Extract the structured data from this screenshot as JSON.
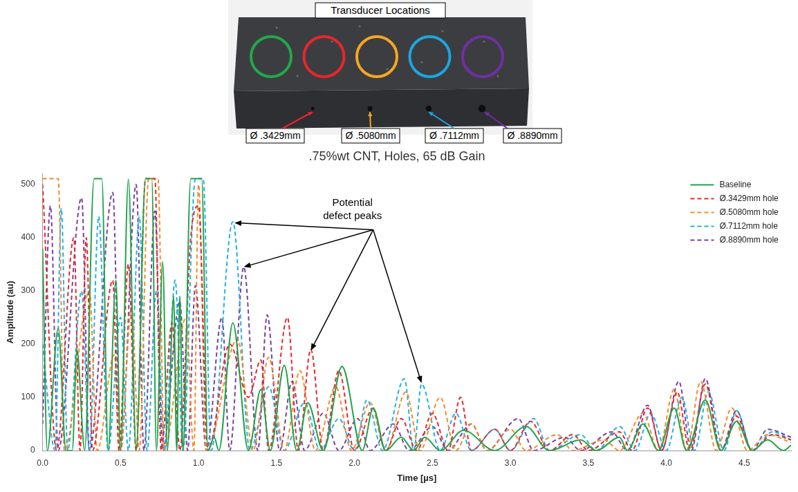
{
  "figure": {
    "title": "Transducer Locations",
    "transducers": [
      "#22a84a",
      "#e8262b",
      "#f5a623",
      "#1ea5e0",
      "#7030a0"
    ],
    "holes": [
      {
        "label": "Ø .3429mm",
        "color": "#e8262b"
      },
      {
        "label": "Ø .5080mm",
        "color": "#f5a623"
      },
      {
        "label": "Ø .7112mm",
        "color": "#1ea5e0"
      },
      {
        "label": "Ø .8890mm",
        "color": "#7030a0"
      }
    ]
  },
  "chart_data": {
    "type": "line",
    "title": ".75%wt CNT, Holes, 65 dB Gain",
    "x_label": "Time [µs]",
    "y_label": "Amplitude (au)",
    "xlim": [
      0,
      4.8
    ],
    "xticks": [
      {
        "value": 0,
        "label": "0.0"
      },
      0.5,
      {
        "value": 1,
        "label": "1.0"
      },
      1.5,
      {
        "value": 2,
        "label": "2.0"
      },
      2.5,
      {
        "value": 3,
        "label": "3.0"
      },
      3.5,
      {
        "value": 4,
        "label": "4.0"
      },
      4.5
    ],
    "ylim": [
      0,
      520
    ],
    "yticks": [
      0,
      100,
      200,
      300,
      400,
      500
    ],
    "grid": false,
    "legend": "top-right",
    "annotations": [
      {
        "text": "Potential defect peaks",
        "x": 2.12,
        "y": 415,
        "targets": [
          [
            1.23,
            428
          ],
          [
            1.29,
            345
          ],
          [
            1.72,
            188
          ],
          [
            2.43,
            127
          ]
        ]
      }
    ],
    "series": [
      {
        "name": "Baseline",
        "color": "#1fa34a",
        "line_style": "solid",
        "x": [
          0,
          0.03,
          0.1,
          0.15,
          0.19,
          0.22,
          0.27,
          0.33,
          0.38,
          0.42,
          0.47,
          0.5,
          0.55,
          0.6,
          0.66,
          0.7,
          0.73,
          0.77,
          0.8,
          0.84,
          0.86,
          0.88,
          0.9,
          0.95,
          1.02,
          1.06,
          1.1,
          1.13,
          1.22,
          1.32,
          1.4,
          1.46,
          1.55,
          1.63,
          1.7,
          1.8,
          1.92,
          2.05,
          2.12,
          2.2,
          2.3,
          2.38,
          2.45,
          2.55,
          2.7,
          2.9,
          3.1,
          3.25,
          3.45,
          3.55,
          3.7,
          3.75,
          3.85,
          3.95,
          4.05,
          4.13,
          4.25,
          4.35,
          4.45,
          4.55,
          4.65,
          4.75,
          4.8
        ],
        "values": [
          380,
          0,
          230,
          0,
          0,
          190,
          0,
          511,
          511,
          0,
          320,
          0,
          510,
          0,
          511,
          511,
          0,
          355,
          0,
          290,
          0,
          290,
          0,
          511,
          511,
          0,
          25,
          0,
          240,
          0,
          115,
          0,
          160,
          0,
          90,
          0,
          158,
          0,
          80,
          0,
          25,
          0,
          25,
          0,
          38,
          0,
          45,
          0,
          20,
          0,
          25,
          0,
          50,
          0,
          80,
          0,
          95,
          0,
          55,
          0,
          20,
          0,
          10
        ]
      },
      {
        "name": "Ø.3429mm hole",
        "color": "#e8262b",
        "line_style": "dashed",
        "x": [
          0,
          0.09,
          0.2,
          0.24,
          0.28,
          0.32,
          0.45,
          0.49,
          0.55,
          0.6,
          0.66,
          0.72,
          0.76,
          0.83,
          0.88,
          0.95,
          1.0,
          1.06,
          1.2,
          1.32,
          1.4,
          1.45,
          1.57,
          1.64,
          1.72,
          1.8,
          1.9,
          2.0,
          2.12,
          2.2,
          2.3,
          2.4,
          2.5,
          2.6,
          2.68,
          2.75,
          2.9,
          3.0,
          3.13,
          3.25,
          3.4,
          3.5,
          3.7,
          3.78,
          3.88,
          3.97,
          4.07,
          4.15,
          4.25,
          4.35,
          4.45,
          4.55,
          4.68,
          4.8
        ],
        "values": [
          500,
          0,
          400,
          0,
          400,
          0,
          320,
          0,
          350,
          0,
          511,
          511,
          0,
          240,
          0,
          400,
          460,
          0,
          200,
          100,
          170,
          0,
          250,
          0,
          190,
          0,
          150,
          0,
          80,
          0,
          60,
          0,
          70,
          0,
          100,
          0,
          40,
          0,
          55,
          0,
          30,
          0,
          35,
          0,
          80,
          0,
          110,
          0,
          125,
          0,
          65,
          0,
          30,
          20
        ]
      },
      {
        "name": "Ø.5080mm hole",
        "color": "#f58a2a",
        "line_style": "dashed",
        "x": [
          0,
          0.1,
          0.14,
          0.3,
          0.35,
          0.46,
          0.5,
          0.57,
          0.62,
          0.68,
          0.74,
          0.78,
          0.92,
          0.97,
          1.0,
          1.05,
          1.25,
          1.35,
          1.45,
          1.55,
          1.65,
          1.75,
          1.88,
          1.98,
          2.1,
          2.2,
          2.33,
          2.42,
          2.55,
          2.65,
          2.75,
          2.85,
          3.0,
          3.1,
          3.3,
          3.4,
          3.6,
          3.7,
          3.85,
          3.95,
          4.05,
          4.13,
          4.22,
          4.32,
          4.42,
          4.52,
          4.65,
          4.8
        ],
        "values": [
          511,
          511,
          0,
          300,
          0,
          180,
          0,
          270,
          0,
          511,
          511,
          0,
          250,
          0,
          500,
          0,
          210,
          0,
          175,
          0,
          150,
          0,
          120,
          0,
          90,
          0,
          110,
          0,
          100,
          0,
          50,
          0,
          40,
          0,
          30,
          0,
          20,
          0,
          70,
          0,
          115,
          0,
          130,
          0,
          80,
          0,
          30,
          15
        ]
      },
      {
        "name": "Ø.7112mm hole",
        "color": "#21b0e8",
        "line_style": "dashed",
        "x": [
          0,
          0.08,
          0.12,
          0.16,
          0.25,
          0.3,
          0.36,
          0.42,
          0.5,
          0.55,
          0.62,
          0.67,
          0.73,
          0.78,
          0.85,
          0.9,
          0.98,
          1.03,
          1.08,
          1.22,
          1.33,
          1.45,
          1.55,
          1.68,
          1.78,
          1.9,
          2.0,
          2.08,
          2.18,
          2.32,
          2.38,
          2.43,
          2.55,
          2.65,
          2.75,
          2.9,
          3.0,
          3.15,
          3.25,
          3.45,
          3.55,
          3.7,
          3.8,
          3.9,
          4.0,
          4.1,
          4.18,
          4.27,
          4.37,
          4.45,
          4.55,
          4.68,
          4.8
        ],
        "values": [
          200,
          0,
          455,
          0,
          300,
          0,
          440,
          0,
          250,
          0,
          440,
          0,
          300,
          0,
          320,
          0,
          511,
          511,
          0,
          430,
          0,
          120,
          0,
          90,
          0,
          60,
          0,
          95,
          0,
          135,
          0,
          125,
          0,
          70,
          0,
          40,
          0,
          60,
          0,
          30,
          0,
          45,
          0,
          70,
          0,
          100,
          0,
          110,
          0,
          75,
          0,
          35,
          20
        ]
      },
      {
        "name": "Ø.8890mm hole",
        "color": "#7b3fa0",
        "line_style": "dashed",
        "x": [
          0,
          0.05,
          0.1,
          0.25,
          0.3,
          0.45,
          0.5,
          0.6,
          0.65,
          0.72,
          0.77,
          0.88,
          0.93,
          0.98,
          1.05,
          1.15,
          1.2,
          1.29,
          1.38,
          1.44,
          1.52,
          1.6,
          1.68,
          1.8,
          1.9,
          2.02,
          2.1,
          2.25,
          2.35,
          2.5,
          2.6,
          2.75,
          2.85,
          3.05,
          3.15,
          3.35,
          3.45,
          3.65,
          3.75,
          3.88,
          3.97,
          4.08,
          4.16,
          4.25,
          4.35,
          4.45,
          4.55,
          4.65,
          4.8
        ],
        "values": [
          50,
          460,
          0,
          475,
          0,
          485,
          0,
          500,
          0,
          450,
          0,
          280,
          0,
          310,
          0,
          250,
          0,
          345,
          0,
          255,
          0,
          130,
          0,
          70,
          0,
          60,
          0,
          50,
          0,
          45,
          0,
          50,
          0,
          60,
          0,
          25,
          0,
          35,
          0,
          85,
          0,
          130,
          0,
          135,
          0,
          75,
          0,
          40,
          25
        ]
      }
    ]
  }
}
